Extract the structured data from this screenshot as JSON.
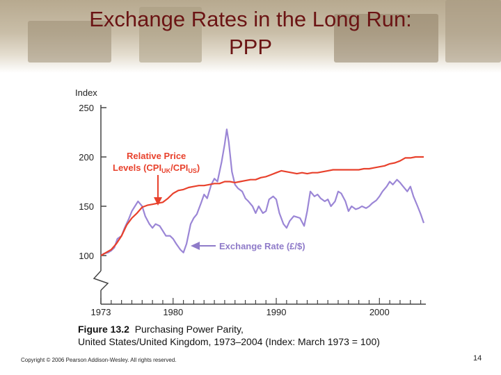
{
  "slide": {
    "title_line1": "Exchange Rates in the Long Run:",
    "title_line2": "PPP",
    "caption_figure": "Figure 13.2",
    "caption_line1": "Purchasing Power Parity,",
    "caption_line2": "United States/United Kingdom, 1973–2004 (Index: March 1973 = 100)",
    "copyright": "Copyright © 2006 Pearson Addison-Wesley. All rights reserved.",
    "page_number": "14"
  },
  "colors": {
    "title": "#6b1414",
    "price_series": "#e8412c",
    "fx_series": "#9b86d6",
    "price_label": "#e8412c",
    "fx_label": "#8f7bc9"
  },
  "chart_data": {
    "type": "line",
    "title": "",
    "ylabel": "Index",
    "xlabel": "",
    "ylim": [
      100,
      250
    ],
    "xlim": [
      1973,
      2004.5
    ],
    "yticks": [
      100,
      150,
      200,
      250
    ],
    "xticks": [
      {
        "value": 1973,
        "label": "1973"
      },
      {
        "value": 1980,
        "label": "1980"
      },
      {
        "value": 1990,
        "label": "1990"
      },
      {
        "value": 2000,
        "label": "2000"
      }
    ],
    "series": [
      {
        "name": "Relative Price Levels (CPI_UK/CPI_US)",
        "label_line1": "Relative Price",
        "label_line2_prefix": "Levels (CPI",
        "label_sub1": "UK",
        "label_mid": "/CPI",
        "label_sub2": "US",
        "label_end": ")",
        "points": [
          [
            1973.0,
            100
          ],
          [
            1973.5,
            103
          ],
          [
            1974.0,
            106
          ],
          [
            1974.5,
            112
          ],
          [
            1975.0,
            120
          ],
          [
            1975.5,
            131
          ],
          [
            1976.0,
            138
          ],
          [
            1976.5,
            143
          ],
          [
            1977.0,
            149
          ],
          [
            1977.5,
            151
          ],
          [
            1978.0,
            152
          ],
          [
            1978.5,
            153
          ],
          [
            1979.0,
            154
          ],
          [
            1979.5,
            158
          ],
          [
            1980.0,
            163
          ],
          [
            1980.5,
            166
          ],
          [
            1981.0,
            167
          ],
          [
            1981.5,
            169
          ],
          [
            1982.0,
            170
          ],
          [
            1982.5,
            171
          ],
          [
            1983.0,
            171
          ],
          [
            1983.5,
            172
          ],
          [
            1984.0,
            173
          ],
          [
            1984.5,
            173
          ],
          [
            1985.0,
            175
          ],
          [
            1985.5,
            175
          ],
          [
            1986.0,
            174
          ],
          [
            1986.5,
            175
          ],
          [
            1987.0,
            176
          ],
          [
            1987.5,
            177
          ],
          [
            1988.0,
            177
          ],
          [
            1988.5,
            179
          ],
          [
            1989.0,
            180
          ],
          [
            1989.5,
            182
          ],
          [
            1990.0,
            184
          ],
          [
            1990.5,
            186
          ],
          [
            1991.0,
            185
          ],
          [
            1991.5,
            184
          ],
          [
            1992.0,
            183
          ],
          [
            1992.5,
            184
          ],
          [
            1993.0,
            183
          ],
          [
            1993.5,
            184
          ],
          [
            1994.0,
            184
          ],
          [
            1994.5,
            185
          ],
          [
            1995.0,
            186
          ],
          [
            1995.5,
            187
          ],
          [
            1996.0,
            187
          ],
          [
            1996.5,
            187
          ],
          [
            1997.0,
            187
          ],
          [
            1997.5,
            187
          ],
          [
            1998.0,
            187
          ],
          [
            1998.5,
            188
          ],
          [
            1999.0,
            188
          ],
          [
            1999.5,
            189
          ],
          [
            2000.0,
            190
          ],
          [
            2000.5,
            191
          ],
          [
            2001.0,
            193
          ],
          [
            2001.5,
            194
          ],
          [
            2002.0,
            196
          ],
          [
            2002.5,
            199
          ],
          [
            2003.0,
            199
          ],
          [
            2003.5,
            200
          ],
          [
            2004.0,
            200
          ],
          [
            2004.3,
            200
          ]
        ]
      },
      {
        "name": "Exchange Rate (£/$)",
        "label": "Exchange Rate (£/$)",
        "points": [
          [
            1973.0,
            100
          ],
          [
            1973.3,
            102
          ],
          [
            1973.7,
            103
          ],
          [
            1974.0,
            105
          ],
          [
            1974.3,
            108
          ],
          [
            1974.6,
            117
          ],
          [
            1975.0,
            120
          ],
          [
            1975.3,
            128
          ],
          [
            1975.7,
            137
          ],
          [
            1976.0,
            145
          ],
          [
            1976.3,
            150
          ],
          [
            1976.6,
            155
          ],
          [
            1977.0,
            150
          ],
          [
            1977.3,
            140
          ],
          [
            1977.7,
            132
          ],
          [
            1978.0,
            128
          ],
          [
            1978.3,
            132
          ],
          [
            1978.7,
            130
          ],
          [
            1979.0,
            125
          ],
          [
            1979.3,
            120
          ],
          [
            1979.7,
            120
          ],
          [
            1980.0,
            117
          ],
          [
            1980.3,
            112
          ],
          [
            1980.7,
            106
          ],
          [
            1981.0,
            103
          ],
          [
            1981.3,
            112
          ],
          [
            1981.7,
            132
          ],
          [
            1982.0,
            138
          ],
          [
            1982.3,
            142
          ],
          [
            1982.7,
            153
          ],
          [
            1983.0,
            162
          ],
          [
            1983.3,
            158
          ],
          [
            1983.7,
            172
          ],
          [
            1984.0,
            178
          ],
          [
            1984.3,
            175
          ],
          [
            1984.7,
            195
          ],
          [
            1985.0,
            213
          ],
          [
            1985.2,
            228
          ],
          [
            1985.4,
            215
          ],
          [
            1985.7,
            185
          ],
          [
            1986.0,
            172
          ],
          [
            1986.3,
            168
          ],
          [
            1986.7,
            165
          ],
          [
            1987.0,
            158
          ],
          [
            1987.3,
            155
          ],
          [
            1987.7,
            150
          ],
          [
            1988.0,
            143
          ],
          [
            1988.3,
            150
          ],
          [
            1988.7,
            143
          ],
          [
            1989.0,
            145
          ],
          [
            1989.3,
            157
          ],
          [
            1989.7,
            160
          ],
          [
            1990.0,
            157
          ],
          [
            1990.3,
            143
          ],
          [
            1990.7,
            132
          ],
          [
            1991.0,
            128
          ],
          [
            1991.3,
            135
          ],
          [
            1991.7,
            140
          ],
          [
            1992.0,
            139
          ],
          [
            1992.3,
            138
          ],
          [
            1992.7,
            130
          ],
          [
            1993.0,
            145
          ],
          [
            1993.3,
            165
          ],
          [
            1993.7,
            160
          ],
          [
            1994.0,
            162
          ],
          [
            1994.3,
            158
          ],
          [
            1994.7,
            155
          ],
          [
            1995.0,
            157
          ],
          [
            1995.3,
            150
          ],
          [
            1995.7,
            155
          ],
          [
            1996.0,
            165
          ],
          [
            1996.3,
            163
          ],
          [
            1996.7,
            155
          ],
          [
            1997.0,
            145
          ],
          [
            1997.3,
            150
          ],
          [
            1997.7,
            147
          ],
          [
            1998.0,
            148
          ],
          [
            1998.3,
            150
          ],
          [
            1998.7,
            148
          ],
          [
            1999.0,
            150
          ],
          [
            1999.3,
            153
          ],
          [
            1999.7,
            156
          ],
          [
            2000.0,
            160
          ],
          [
            2000.3,
            165
          ],
          [
            2000.7,
            170
          ],
          [
            2001.0,
            175
          ],
          [
            2001.3,
            172
          ],
          [
            2001.7,
            177
          ],
          [
            2002.0,
            174
          ],
          [
            2002.3,
            170
          ],
          [
            2002.7,
            165
          ],
          [
            2003.0,
            170
          ],
          [
            2003.3,
            160
          ],
          [
            2003.7,
            150
          ],
          [
            2004.0,
            142
          ],
          [
            2004.3,
            133
          ]
        ]
      }
    ]
  }
}
